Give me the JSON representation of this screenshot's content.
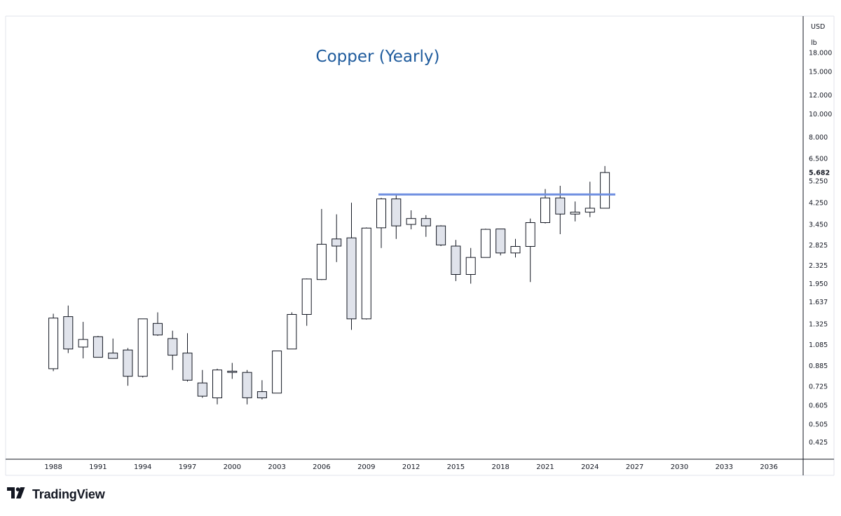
{
  "brand": {
    "name": "TradingView",
    "icon": "tradingview-logo-icon"
  },
  "colors": {
    "title": "#1d5a9c",
    "resistance_line": "#6f8fe0",
    "candle_up_fill": "#ffffff",
    "candle_down_fill": "#e0e3eb",
    "candle_stroke": "#131722"
  },
  "chart_data": {
    "type": "candlestick",
    "title": "Copper (Yearly)",
    "currency": "USD",
    "unit": "lb",
    "scale": "log",
    "grid": false,
    "y_ticks": [
      0.425,
      0.505,
      0.605,
      0.725,
      0.885,
      1.085,
      1.325,
      1.637,
      1.95,
      2.325,
      2.825,
      3.45,
      4.25,
      5.25,
      6.5,
      8.0,
      10.0,
      12.0,
      15.0,
      18.0
    ],
    "y_tick_labels": [
      "0.425",
      "0.505",
      "0.605",
      "0.725",
      "0.885",
      "1.085",
      "1.325",
      "1.637",
      "1.950",
      "2.325",
      "2.825",
      "3.450",
      "4.250",
      "5.250",
      "6.500",
      "8.000",
      "10.000",
      "12.000",
      "15.000",
      "18.000"
    ],
    "last_price": 5.682,
    "last_price_label": "5.682",
    "x_ticks": [
      1988,
      1991,
      1994,
      1997,
      2000,
      2003,
      2006,
      2009,
      2012,
      2015,
      2018,
      2021,
      2024,
      2027,
      2030,
      2033,
      2036
    ],
    "x_range": [
      1984.8,
      2038.3
    ],
    "y_range": [
      0.36,
      25.6
    ],
    "resistance_line": {
      "price": 4.6,
      "from_year": 2010,
      "to_year": 2025.7
    },
    "candles": [
      {
        "year": 1988,
        "open": 0.86,
        "high": 1.46,
        "low": 0.84,
        "close": 1.4
      },
      {
        "year": 1989,
        "open": 1.42,
        "high": 1.58,
        "low": 1.0,
        "close": 1.04
      },
      {
        "year": 1990,
        "open": 1.06,
        "high": 1.35,
        "low": 0.95,
        "close": 1.14
      },
      {
        "year": 1991,
        "open": 1.17,
        "high": 1.18,
        "low": 0.96,
        "close": 0.96
      },
      {
        "year": 1992,
        "open": 1.0,
        "high": 1.15,
        "low": 0.95,
        "close": 0.95
      },
      {
        "year": 1993,
        "open": 1.03,
        "high": 1.05,
        "low": 0.73,
        "close": 0.8
      },
      {
        "year": 1994,
        "open": 0.8,
        "high": 1.39,
        "low": 0.79,
        "close": 1.39
      },
      {
        "year": 1995,
        "open": 1.33,
        "high": 1.48,
        "low": 1.18,
        "close": 1.19
      },
      {
        "year": 1996,
        "open": 1.15,
        "high": 1.24,
        "low": 0.85,
        "close": 0.98
      },
      {
        "year": 1997,
        "open": 1.0,
        "high": 1.21,
        "low": 0.76,
        "close": 0.77
      },
      {
        "year": 1998,
        "open": 0.75,
        "high": 0.85,
        "low": 0.65,
        "close": 0.66
      },
      {
        "year": 1999,
        "open": 0.65,
        "high": 0.86,
        "low": 0.61,
        "close": 0.85
      },
      {
        "year": 2000,
        "open": 0.84,
        "high": 0.91,
        "low": 0.78,
        "close": 0.83
      },
      {
        "year": 2001,
        "open": 0.83,
        "high": 0.85,
        "low": 0.61,
        "close": 0.65
      },
      {
        "year": 2002,
        "open": 0.69,
        "high": 0.77,
        "low": 0.64,
        "close": 0.65
      },
      {
        "year": 2003,
        "open": 0.68,
        "high": 1.02,
        "low": 0.68,
        "close": 1.02
      },
      {
        "year": 2004,
        "open": 1.04,
        "high": 1.48,
        "low": 1.04,
        "close": 1.45
      },
      {
        "year": 2005,
        "open": 1.45,
        "high": 2.05,
        "low": 1.3,
        "close": 2.04
      },
      {
        "year": 2006,
        "open": 2.03,
        "high": 4.0,
        "low": 2.02,
        "close": 2.85
      },
      {
        "year": 2007,
        "open": 3.0,
        "high": 3.8,
        "low": 2.4,
        "close": 2.8
      },
      {
        "year": 2008,
        "open": 3.03,
        "high": 4.25,
        "low": 1.25,
        "close": 1.39
      },
      {
        "year": 2009,
        "open": 1.39,
        "high": 3.35,
        "low": 1.38,
        "close": 3.33
      },
      {
        "year": 2010,
        "open": 3.34,
        "high": 4.45,
        "low": 2.75,
        "close": 4.41
      },
      {
        "year": 2011,
        "open": 4.41,
        "high": 4.6,
        "low": 3.0,
        "close": 3.4
      },
      {
        "year": 2012,
        "open": 3.45,
        "high": 3.95,
        "low": 3.29,
        "close": 3.65
      },
      {
        "year": 2013,
        "open": 3.65,
        "high": 3.77,
        "low": 3.06,
        "close": 3.4
      },
      {
        "year": 2014,
        "open": 3.4,
        "high": 3.42,
        "low": 2.8,
        "close": 2.83
      },
      {
        "year": 2015,
        "open": 2.8,
        "high": 2.97,
        "low": 2.0,
        "close": 2.13
      },
      {
        "year": 2016,
        "open": 2.13,
        "high": 2.75,
        "low": 1.95,
        "close": 2.51
      },
      {
        "year": 2017,
        "open": 2.51,
        "high": 3.31,
        "low": 2.51,
        "close": 3.29
      },
      {
        "year": 2018,
        "open": 3.3,
        "high": 3.3,
        "low": 2.56,
        "close": 2.62
      },
      {
        "year": 2019,
        "open": 2.62,
        "high": 3.0,
        "low": 2.51,
        "close": 2.79
      },
      {
        "year": 2020,
        "open": 2.79,
        "high": 3.65,
        "low": 1.98,
        "close": 3.51
      },
      {
        "year": 2021,
        "open": 3.51,
        "high": 4.85,
        "low": 3.48,
        "close": 4.45
      },
      {
        "year": 2022,
        "open": 4.45,
        "high": 5.0,
        "low": 3.14,
        "close": 3.81
      },
      {
        "year": 2023,
        "open": 3.81,
        "high": 4.3,
        "low": 3.55,
        "close": 3.88
      },
      {
        "year": 2024,
        "open": 3.88,
        "high": 5.2,
        "low": 3.7,
        "close": 4.03
      },
      {
        "year": 2025,
        "open": 4.03,
        "high": 6.05,
        "low": 4.03,
        "close": 5.682
      }
    ]
  }
}
